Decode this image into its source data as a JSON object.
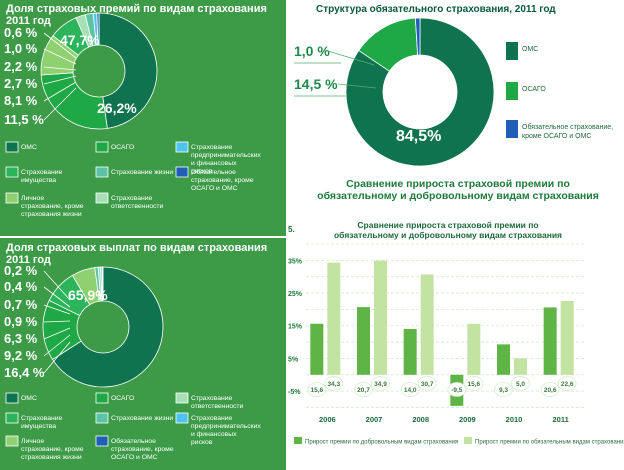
{
  "chart_data": [
    {
      "type": "pie",
      "title": "Доля страховых премий по видам страхования 2011 год",
      "slices": [
        {
          "label": "ОМС",
          "value": 47.7,
          "value_label": "47,7%",
          "color": "#0f7350"
        },
        {
          "label": "ОСАГО",
          "value": 26.2,
          "value_label": "26,2%",
          "color": "#1ea846"
        },
        {
          "label": "Личное страхование, кроме страхования жизни",
          "value": 11.5,
          "value_label": "11,5 %",
          "color": "#8fd070"
        },
        {
          "label": "Страхование имущества",
          "value": 8.1,
          "value_label": "8,1 %",
          "color": "#2bb45a"
        },
        {
          "label": "Страхование ответственности",
          "value": 2.7,
          "value_label": "2,7 %",
          "color": "#a6e0b4"
        },
        {
          "label": "Страхование жизни",
          "value": 2.2,
          "value_label": "2,2 %",
          "color": "#5cc4a4"
        },
        {
          "label": "Страхование предпринимательских и финансовых рисков",
          "value": 1.0,
          "value_label": "1,0 %",
          "color": "#4fc3f0"
        },
        {
          "label": "Обязательное страхование, кроме ОСАГО и ОМС",
          "value": 0.6,
          "value_label": "0,6 %",
          "color": "#1f5fb8"
        }
      ],
      "legend": [
        {
          "label": "ОМС",
          "color": "#0f7350"
        },
        {
          "label": "ОСАГО",
          "color": "#1ea846"
        },
        {
          "label": "Страхование предпринимательских и финансовых рисков",
          "color": "#4fc3f0"
        },
        {
          "label": "Страхование имущества",
          "color": "#2bb45a"
        },
        {
          "label": "Страхование жизни",
          "color": "#5cc4a4"
        },
        {
          "label": "Обязательное страхование, кроме ОСАГО и ОМС",
          "color": "#1f5fb8"
        },
        {
          "label": "Личное страхование, кроме страхования жизни",
          "color": "#8fd070"
        },
        {
          "label": "Страхование ответственности",
          "color": "#a6e0b4"
        }
      ]
    },
    {
      "type": "pie",
      "title": "Структура обязательного страхования, 2011 год",
      "slices": [
        {
          "label": "ОМС",
          "value": 84.5,
          "value_label": "84,5%",
          "color": "#0f7350"
        },
        {
          "label": "ОСАГО",
          "value": 14.5,
          "value_label": "14,5 %",
          "color": "#1ea846"
        },
        {
          "label": "Обязательное страхование, кроме ОСАГО и ОМС",
          "value": 1.0,
          "value_label": "1,0 %",
          "color": "#1f5fb8"
        }
      ],
      "legend": [
        {
          "label": "ОМС",
          "color": "#0f7350"
        },
        {
          "label": "ОСАГО",
          "color": "#1ea846"
        },
        {
          "label": "Обязательное страхование, кроме ОСАГО и ОМС",
          "color": "#1f5fb8"
        }
      ]
    },
    {
      "type": "pie",
      "title": "Доля страховых выплат по видам страхования 2011 год",
      "slices": [
        {
          "label": "ОМС",
          "value": 65.9,
          "value_label": "65,9%",
          "color": "#0f7350"
        },
        {
          "label": "ОСАГО",
          "value": 16.4,
          "value_label": "16,4 %",
          "color": "#1ea846"
        },
        {
          "label": "Страхование имущества",
          "value": 9.2,
          "value_label": "9,2 %",
          "color": "#2bb45a"
        },
        {
          "label": "Личное страхование, кроме страхования жизни",
          "value": 6.3,
          "value_label": "6,3 %",
          "color": "#8fd070"
        },
        {
          "label": "Страхование жизни",
          "value": 0.9,
          "value_label": "0,9 %",
          "color": "#5cc4a4"
        },
        {
          "label": "Страхование ответственности",
          "value": 0.7,
          "value_label": "0,7 %",
          "color": "#a6e0b4"
        },
        {
          "label": "Страхование предпринимательских и финансовых рисков",
          "value": 0.4,
          "value_label": "0,4 %",
          "color": "#4fc3f0"
        },
        {
          "label": "Обязательное страхование, кроме ОСАГО и ОМС",
          "value": 0.2,
          "value_label": "0,2 %",
          "color": "#1f5fb8"
        }
      ],
      "legend": [
        {
          "label": "ОМС",
          "color": "#0f7350"
        },
        {
          "label": "ОСАГО",
          "color": "#1ea846"
        },
        {
          "label": "Страхование ответственности",
          "color": "#a6e0b4"
        },
        {
          "label": "Страхование имущества",
          "color": "#2bb45a"
        },
        {
          "label": "Страхование жизни",
          "color": "#5cc4a4"
        },
        {
          "label": "Страхование предпринимательских и финансовых рисков",
          "color": "#4fc3f0"
        },
        {
          "label": "Личное страхование, кроме страхования жизни",
          "color": "#8fd070"
        },
        {
          "label": "Обязательное страхование, кроме ОСАГО и ОМС",
          "color": "#1f5fb8"
        }
      ]
    },
    {
      "type": "bar",
      "title": "Сравнение прироста страховой премии по обязательному и добровольному видам страхования",
      "subtitle": "Сравнение прироста страховой премии по обязательному и добровольному видам страхования",
      "axis_label": "5.",
      "categories": [
        "2006",
        "2007",
        "2008",
        "2009",
        "2010",
        "2011"
      ],
      "series": [
        {
          "name": "Прирост премии по добровольным видам страхования",
          "values": [
            15.6,
            20.7,
            14.0,
            -9.5,
            9.3,
            20.6
          ],
          "labels": [
            "15,6",
            "20,7",
            "14,0",
            "-9,5",
            "9,3",
            "20,6"
          ],
          "color": "#5fb446"
        },
        {
          "name": "Прирост премии по обязательным видам страхования",
          "values": [
            34.3,
            34.9,
            30.7,
            15.6,
            5.0,
            22.6
          ],
          "labels": [
            "34,3",
            "34,9",
            "30,7",
            "15,6",
            "5,0",
            "22,6"
          ],
          "color": "#c3e3a3"
        }
      ],
      "yticks": [
        -5,
        5,
        15,
        25,
        35
      ],
      "ytick_labels": [
        "-5%",
        "5%",
        "15%",
        "25%",
        "35%"
      ],
      "ylim": [
        -12,
        40
      ],
      "grid": true
    }
  ]
}
